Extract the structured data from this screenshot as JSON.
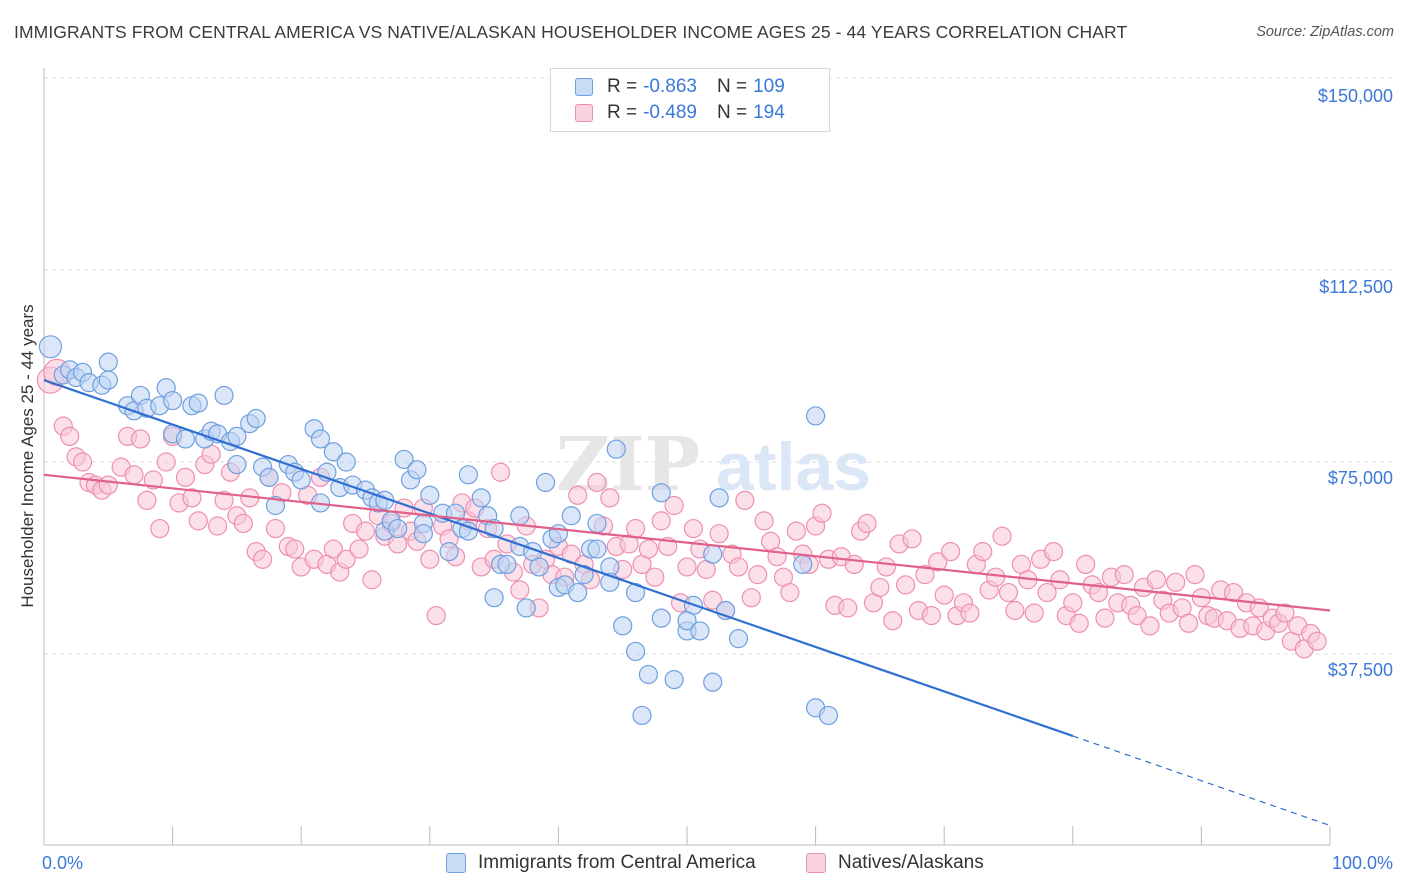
{
  "title": "IMMIGRANTS FROM CENTRAL AMERICA VS NATIVE/ALASKAN HOUSEHOLDER INCOME AGES 25 - 44 YEARS CORRELATION CHART",
  "source": "Source: ZipAtlas.com",
  "watermark": {
    "zip": "ZIP",
    "atlas": "atlas"
  },
  "legend": {
    "r_label": "R =",
    "n_label": "N =",
    "rows": [
      {
        "r": "-0.863",
        "n": "109",
        "color": "#6f9fe0"
      },
      {
        "r": "-0.489",
        "n": "194",
        "color": "#ef8fb0"
      }
    ]
  },
  "x_axis": {
    "min_label": "0.0%",
    "max_label": "100.0%"
  },
  "y_axis": {
    "label": "Householder Income Ages 25 - 44 years",
    "ticks": [
      "$150,000",
      "$112,500",
      "$75,000",
      "$37,500"
    ]
  },
  "colors": {
    "blue": "#6f9fe0",
    "blue_line": "#2f6fd0",
    "pink": "#ef8fb0",
    "pink_line": "#e0608a",
    "accent_text": "#3b78d8"
  },
  "chart_data": {
    "type": "scatter",
    "xlim": [
      0,
      100
    ],
    "ylim": [
      0,
      150000
    ],
    "grid": true,
    "legend_position": "top-center",
    "series": [
      {
        "name": "Immigrants from Central America",
        "color": "#6f9fe0",
        "trend": {
          "x0": 0,
          "y0": 91000,
          "x1": 80,
          "y1": 21500,
          "dashed_to_x": 100,
          "dashed_to_y": 4000
        },
        "points": [
          [
            0.5,
            97500
          ],
          [
            1.5,
            92000
          ],
          [
            2,
            93000
          ],
          [
            2.5,
            91500
          ],
          [
            3,
            92500
          ],
          [
            3.5,
            90500
          ],
          [
            4.5,
            90000
          ],
          [
            5,
            91000
          ],
          [
            5,
            94500
          ],
          [
            6.5,
            86000
          ],
          [
            7,
            85000
          ],
          [
            7.5,
            88000
          ],
          [
            8,
            85500
          ],
          [
            9,
            86000
          ],
          [
            9.5,
            89500
          ],
          [
            10,
            87000
          ],
          [
            10,
            80500
          ],
          [
            11,
            79500
          ],
          [
            11.5,
            86000
          ],
          [
            12,
            86500
          ],
          [
            12.5,
            79500
          ],
          [
            13,
            81000
          ],
          [
            13.5,
            80500
          ],
          [
            14,
            88000
          ],
          [
            14.5,
            79000
          ],
          [
            15,
            80000
          ],
          [
            15,
            74500
          ],
          [
            16,
            82500
          ],
          [
            16.5,
            83500
          ],
          [
            17,
            74000
          ],
          [
            17.5,
            72000
          ],
          [
            18,
            66500
          ],
          [
            19,
            74500
          ],
          [
            19.5,
            73000
          ],
          [
            20,
            71500
          ],
          [
            21,
            81500
          ],
          [
            21.5,
            67000
          ],
          [
            21.5,
            79500
          ],
          [
            22,
            73000
          ],
          [
            22.5,
            77000
          ],
          [
            23,
            70000
          ],
          [
            23.5,
            75000
          ],
          [
            24,
            70500
          ],
          [
            25,
            69500
          ],
          [
            25.5,
            68000
          ],
          [
            26,
            67000
          ],
          [
            26.5,
            67500
          ],
          [
            26.5,
            61500
          ],
          [
            27,
            63500
          ],
          [
            27.5,
            62000
          ],
          [
            28,
            75500
          ],
          [
            28.5,
            71500
          ],
          [
            29,
            73500
          ],
          [
            29.5,
            63000
          ],
          [
            29.5,
            61000
          ],
          [
            30,
            68500
          ],
          [
            31,
            65000
          ],
          [
            31.5,
            57500
          ],
          [
            32,
            65000
          ],
          [
            32.5,
            62000
          ],
          [
            33,
            61500
          ],
          [
            33,
            72500
          ],
          [
            34,
            68000
          ],
          [
            34.5,
            64500
          ],
          [
            35,
            62000
          ],
          [
            35,
            48500
          ],
          [
            35.5,
            55000
          ],
          [
            36,
            55000
          ],
          [
            37,
            58500
          ],
          [
            37,
            64500
          ],
          [
            37.5,
            46500
          ],
          [
            38,
            57500
          ],
          [
            38.5,
            54500
          ],
          [
            39,
            71000
          ],
          [
            39.5,
            60000
          ],
          [
            40,
            61000
          ],
          [
            40,
            50500
          ],
          [
            40.5,
            51000
          ],
          [
            41,
            64500
          ],
          [
            41.5,
            49500
          ],
          [
            42,
            53000
          ],
          [
            42.5,
            58000
          ],
          [
            43,
            63000
          ],
          [
            43,
            58000
          ],
          [
            44,
            54500
          ],
          [
            44,
            51500
          ],
          [
            44.5,
            77500
          ],
          [
            45,
            43000
          ],
          [
            46,
            49500
          ],
          [
            46,
            38000
          ],
          [
            46.5,
            25500
          ],
          [
            47,
            33500
          ],
          [
            48,
            69000
          ],
          [
            48,
            44500
          ],
          [
            49,
            32500
          ],
          [
            50,
            42000
          ],
          [
            50.5,
            47000
          ],
          [
            50,
            44000
          ],
          [
            51,
            42000
          ],
          [
            52,
            32000
          ],
          [
            52,
            57000
          ],
          [
            52.5,
            68000
          ],
          [
            53,
            46000
          ],
          [
            54,
            40500
          ],
          [
            59,
            55000
          ],
          [
            60,
            84000
          ],
          [
            60,
            27000
          ],
          [
            61,
            25500
          ]
        ]
      },
      {
        "name": "Natives/Alaskans",
        "color": "#ef8fb0",
        "trend": {
          "x0": 0,
          "y0": 72500,
          "x1": 100,
          "y1": 46000
        },
        "points": [
          [
            0.5,
            91000
          ],
          [
            1,
            92500
          ],
          [
            1.5,
            82000
          ],
          [
            2,
            80000
          ],
          [
            2.5,
            76000
          ],
          [
            3,
            75000
          ],
          [
            3.5,
            71000
          ],
          [
            4,
            70500
          ],
          [
            4.5,
            69500
          ],
          [
            5,
            70500
          ],
          [
            6,
            74000
          ],
          [
            6.5,
            80000
          ],
          [
            7,
            72500
          ],
          [
            7.5,
            79500
          ],
          [
            8,
            67500
          ],
          [
            8.5,
            71500
          ],
          [
            9,
            62000
          ],
          [
            9.5,
            75000
          ],
          [
            10,
            80000
          ],
          [
            10.5,
            67000
          ],
          [
            11,
            72000
          ],
          [
            11.5,
            68000
          ],
          [
            12,
            63500
          ],
          [
            12.5,
            74500
          ],
          [
            13,
            76500
          ],
          [
            13.5,
            62500
          ],
          [
            14,
            67500
          ],
          [
            14.5,
            73000
          ],
          [
            15,
            64500
          ],
          [
            15.5,
            63000
          ],
          [
            16,
            68000
          ],
          [
            16.5,
            57500
          ],
          [
            17,
            56000
          ],
          [
            17.5,
            72000
          ],
          [
            18,
            62000
          ],
          [
            18.5,
            69000
          ],
          [
            19,
            58500
          ],
          [
            19.5,
            58000
          ],
          [
            20,
            54500
          ],
          [
            20.5,
            68500
          ],
          [
            21,
            56000
          ],
          [
            21.5,
            72000
          ],
          [
            22,
            55000
          ],
          [
            22.5,
            58000
          ],
          [
            23,
            53500
          ],
          [
            23.5,
            56000
          ],
          [
            24,
            63000
          ],
          [
            24.5,
            58000
          ],
          [
            25,
            61500
          ],
          [
            25.5,
            52000
          ],
          [
            26,
            64500
          ],
          [
            26.5,
            60500
          ],
          [
            27,
            63000
          ],
          [
            27.5,
            59000
          ],
          [
            28,
            66000
          ],
          [
            28.5,
            61500
          ],
          [
            29,
            59500
          ],
          [
            29.5,
            66000
          ],
          [
            30,
            56000
          ],
          [
            30.5,
            45000
          ],
          [
            31,
            62500
          ],
          [
            31.5,
            60000
          ],
          [
            32,
            56500
          ],
          [
            32.5,
            67000
          ],
          [
            33,
            63500
          ],
          [
            33.5,
            66000
          ],
          [
            34,
            54500
          ],
          [
            34.5,
            62000
          ],
          [
            35,
            56000
          ],
          [
            35.5,
            73000
          ],
          [
            36,
            59000
          ],
          [
            36.5,
            53500
          ],
          [
            37,
            50000
          ],
          [
            37.5,
            62500
          ],
          [
            38,
            55000
          ],
          [
            38.5,
            46500
          ],
          [
            39,
            56000
          ],
          [
            39.5,
            53000
          ],
          [
            40,
            58500
          ],
          [
            40.5,
            52500
          ],
          [
            41,
            57000
          ],
          [
            41.5,
            68500
          ],
          [
            42,
            55000
          ],
          [
            42.5,
            52000
          ],
          [
            43,
            71000
          ],
          [
            43.5,
            62500
          ],
          [
            44,
            68000
          ],
          [
            44.5,
            58500
          ],
          [
            45,
            54000
          ],
          [
            45.5,
            59000
          ],
          [
            46,
            62000
          ],
          [
            46.5,
            55000
          ],
          [
            47,
            58000
          ],
          [
            47.5,
            52500
          ],
          [
            48,
            63500
          ],
          [
            48.5,
            58500
          ],
          [
            49,
            66500
          ],
          [
            49.5,
            47500
          ],
          [
            50,
            54500
          ],
          [
            50.5,
            62000
          ],
          [
            51,
            58000
          ],
          [
            51.5,
            54000
          ],
          [
            52,
            48000
          ],
          [
            52.5,
            61000
          ],
          [
            53,
            46000
          ],
          [
            53.5,
            57000
          ],
          [
            54,
            54500
          ],
          [
            54.5,
            67500
          ],
          [
            55,
            48500
          ],
          [
            55.5,
            53000
          ],
          [
            56,
            63500
          ],
          [
            56.5,
            59500
          ],
          [
            57,
            56500
          ],
          [
            57.5,
            52500
          ],
          [
            58,
            49500
          ],
          [
            58.5,
            61500
          ],
          [
            59,
            57000
          ],
          [
            59.5,
            55000
          ],
          [
            60,
            62500
          ],
          [
            60.5,
            65000
          ],
          [
            61,
            56000
          ],
          [
            61.5,
            47000
          ],
          [
            62,
            56500
          ],
          [
            62.5,
            46500
          ],
          [
            63,
            55000
          ],
          [
            63.5,
            61500
          ],
          [
            64,
            63000
          ],
          [
            64.5,
            47500
          ],
          [
            65,
            50500
          ],
          [
            65.5,
            54500
          ],
          [
            66,
            44000
          ],
          [
            66.5,
            59000
          ],
          [
            67,
            51000
          ],
          [
            67.5,
            60000
          ],
          [
            68,
            46000
          ],
          [
            68.5,
            53000
          ],
          [
            69,
            45000
          ],
          [
            69.5,
            55500
          ],
          [
            70,
            49000
          ],
          [
            70.5,
            57500
          ],
          [
            71,
            45000
          ],
          [
            71.5,
            47500
          ],
          [
            72,
            45500
          ],
          [
            72.5,
            55000
          ],
          [
            73,
            57500
          ],
          [
            73.5,
            50000
          ],
          [
            74,
            52500
          ],
          [
            74.5,
            60500
          ],
          [
            75,
            49500
          ],
          [
            75.5,
            46000
          ],
          [
            76,
            55000
          ],
          [
            76.5,
            52000
          ],
          [
            77,
            45500
          ],
          [
            77.5,
            56000
          ],
          [
            78,
            49500
          ],
          [
            78.5,
            57500
          ],
          [
            79,
            52000
          ],
          [
            79.5,
            45000
          ],
          [
            80,
            47500
          ],
          [
            80.5,
            43500
          ],
          [
            81,
            55000
          ],
          [
            81.5,
            51000
          ],
          [
            82,
            49500
          ],
          [
            82.5,
            44500
          ],
          [
            83,
            52500
          ],
          [
            83.5,
            47500
          ],
          [
            84,
            53000
          ],
          [
            84.5,
            47000
          ],
          [
            85,
            45000
          ],
          [
            85.5,
            50500
          ],
          [
            86,
            43000
          ],
          [
            86.5,
            52000
          ],
          [
            87,
            48000
          ],
          [
            87.5,
            45500
          ],
          [
            88,
            51500
          ],
          [
            88.5,
            46500
          ],
          [
            89,
            43500
          ],
          [
            89.5,
            53000
          ],
          [
            90,
            48500
          ],
          [
            90.5,
            45000
          ],
          [
            91,
            44500
          ],
          [
            91.5,
            50000
          ],
          [
            92,
            44000
          ],
          [
            92.5,
            49500
          ],
          [
            93,
            42500
          ],
          [
            93.5,
            47500
          ],
          [
            94,
            43000
          ],
          [
            94.5,
            46500
          ],
          [
            95,
            42000
          ],
          [
            95.5,
            44500
          ],
          [
            96,
            43500
          ],
          [
            96.5,
            45500
          ],
          [
            97,
            40000
          ],
          [
            97.5,
            43000
          ],
          [
            98,
            38500
          ],
          [
            98.5,
            41500
          ],
          [
            99,
            40000
          ]
        ]
      }
    ]
  }
}
